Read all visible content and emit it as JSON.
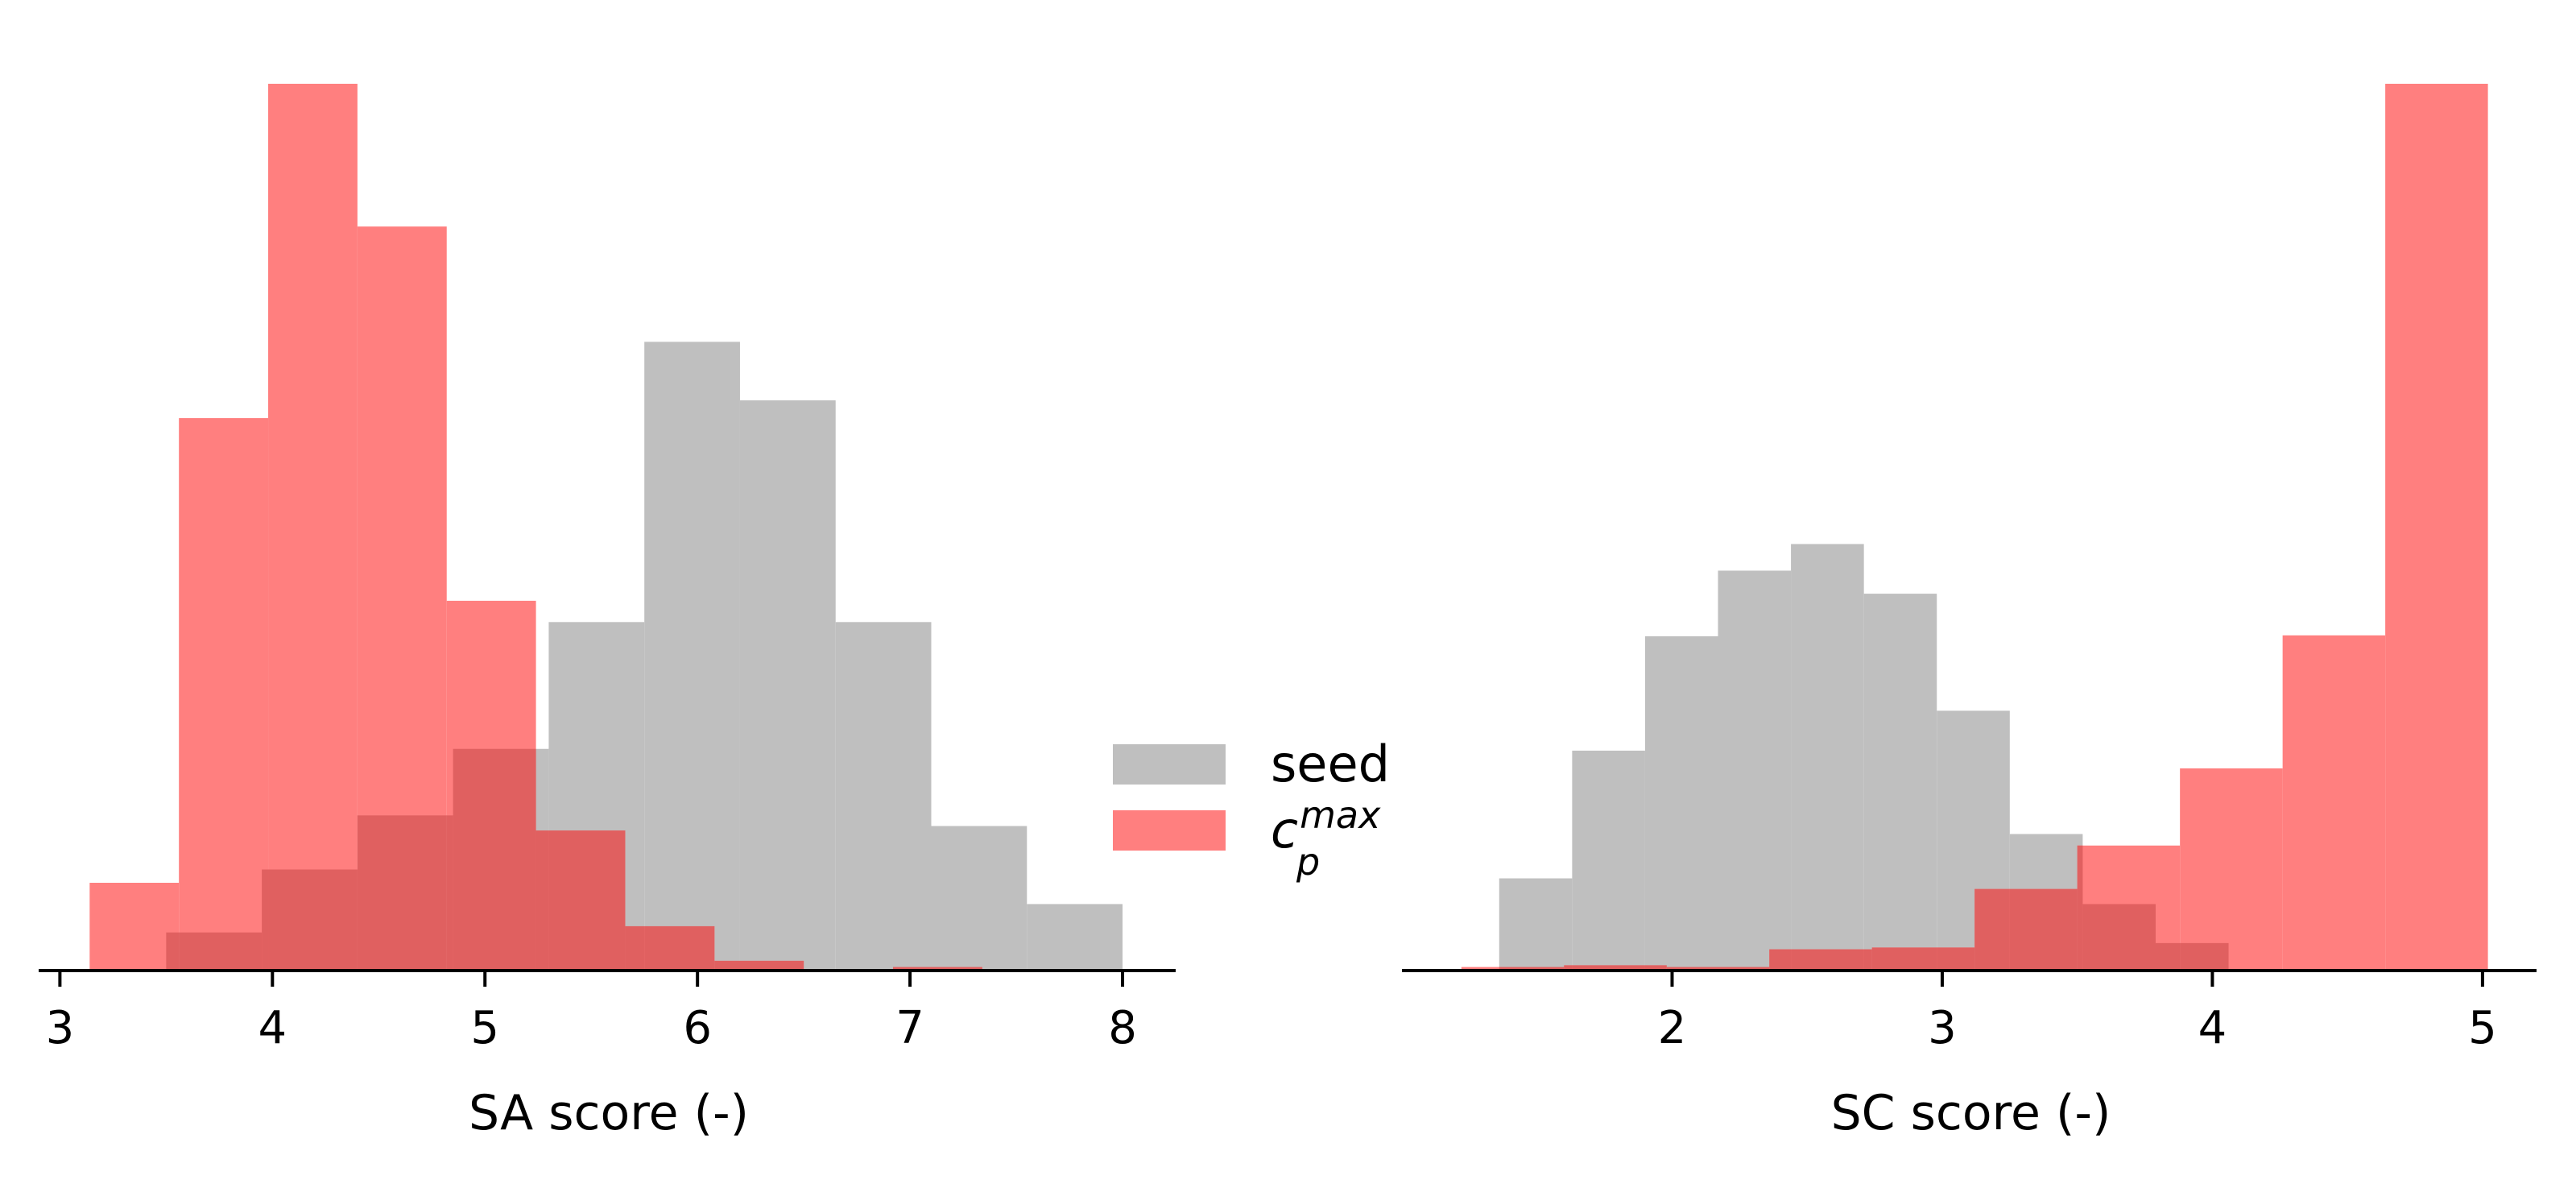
{
  "colors": {
    "seed": "#bfbfbf",
    "cp_max": "#ff7f7f",
    "overlap": "#e06060",
    "axis": "#000000"
  },
  "legend": {
    "placement": "center",
    "entries": [
      {
        "key": "seed",
        "label": "seed"
      },
      {
        "key": "cp_max",
        "label_base": "c",
        "label_sub": "p",
        "label_sup": "max"
      }
    ]
  },
  "chart_data": [
    {
      "type": "histogram",
      "xlabel": "SA score (-)",
      "xlim": [
        2.9,
        8.25
      ],
      "xticks": [
        3,
        4,
        5,
        6,
        7,
        8
      ],
      "ylim": [
        0,
        1.0
      ],
      "y_axis_visible": false,
      "series": [
        {
          "key": "seed",
          "name": "seed",
          "bin_edges": [
            3.5,
            3.95,
            4.4,
            4.85,
            5.3,
            5.75,
            6.2,
            6.65,
            7.1,
            7.55,
            8.0
          ],
          "values": [
            0.043,
            0.114,
            0.175,
            0.25,
            0.393,
            0.709,
            0.643,
            0.393,
            0.163,
            0.075
          ]
        },
        {
          "key": "cp_max",
          "name": "c_p^max",
          "bin_edges": [
            3.14,
            3.56,
            3.98,
            4.4,
            4.82,
            5.24,
            5.66,
            6.08,
            6.5,
            6.92,
            7.34
          ],
          "values": [
            0.099,
            0.623,
            1.0,
            0.839,
            0.417,
            0.158,
            0.05,
            0.011,
            0.0,
            0.004
          ]
        }
      ]
    },
    {
      "type": "histogram",
      "xlabel": "SC score (-)",
      "xlim": [
        1.0,
        5.2
      ],
      "xticks": [
        2,
        3,
        4,
        5
      ],
      "ylim": [
        0,
        1.0
      ],
      "y_axis_visible": false,
      "series": [
        {
          "key": "seed",
          "name": "seed",
          "bin_edges": [
            1.36,
            1.63,
            1.9,
            2.17,
            2.44,
            2.71,
            2.98,
            3.25,
            3.52,
            3.79,
            4.06
          ],
          "values": [
            0.104,
            0.248,
            0.377,
            0.451,
            0.481,
            0.425,
            0.293,
            0.154,
            0.075,
            0.031
          ]
        },
        {
          "key": "cp_max",
          "name": "c_p^max",
          "bin_edges": [
            1.22,
            1.6,
            1.98,
            2.36,
            2.74,
            3.12,
            3.5,
            3.88,
            4.26,
            4.64,
            5.02
          ],
          "values": [
            0.004,
            0.006,
            0.004,
            0.024,
            0.026,
            0.092,
            0.141,
            0.228,
            0.378,
            1.0
          ]
        }
      ]
    }
  ]
}
